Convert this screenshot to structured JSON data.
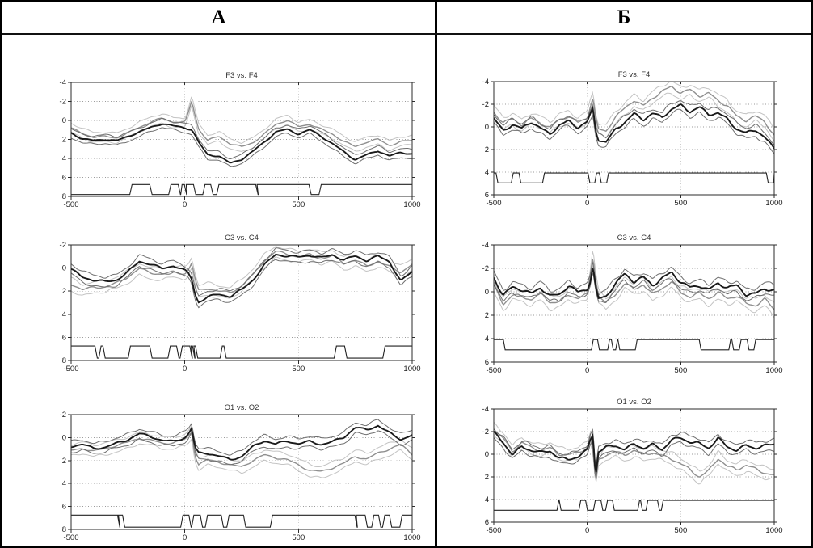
{
  "header": {
    "left": "А",
    "right": "Б"
  },
  "palette": {
    "trace_dark": "#1a1a1a",
    "trace_dark_ci": "#6e6e6e",
    "trace_gray": "#8f8f8f",
    "trace_gray_ci": "#c3c3c3",
    "marker": "#222222",
    "grid": "#9a9a9a",
    "frame": "#2b2b2b",
    "tick_label": "#1a1a1a",
    "title": "#333333"
  },
  "chart_data": [
    {
      "id": "a1",
      "panel": "А",
      "title": "F3 vs. F4",
      "type": "line",
      "xlim": [
        -500,
        1000
      ],
      "ylim_top_to_bottom": [
        -4,
        8
      ],
      "y_axis_inverted": true,
      "xticks": [
        -500,
        0,
        500,
        1000
      ],
      "yticks": [
        -4,
        -2,
        0,
        2,
        4,
        6,
        8
      ],
      "grid_x": [
        0,
        500
      ],
      "grid_y": [
        -2,
        0,
        2,
        4,
        6
      ],
      "wiggle": 0.13,
      "x": [
        -500,
        -450,
        -400,
        -350,
        -300,
        -250,
        -200,
        -150,
        -100,
        -50,
        0,
        15,
        30,
        45,
        60,
        100,
        150,
        200,
        250,
        300,
        350,
        400,
        450,
        500,
        550,
        600,
        650,
        700,
        750,
        800,
        850,
        900,
        950,
        1000
      ],
      "series": [
        {
          "name": "dark-mean",
          "values": [
            1.3,
            1.9,
            2.1,
            2.0,
            2.2,
            1.7,
            1.2,
            0.7,
            0.3,
            0.6,
            0.8,
            0.9,
            1.0,
            1.6,
            2.3,
            3.6,
            3.7,
            4.5,
            4.1,
            3.3,
            2.3,
            1.2,
            0.9,
            1.4,
            1.0,
            1.7,
            2.5,
            3.3,
            4.1,
            3.6,
            3.2,
            3.8,
            3.4,
            3.5
          ]
        },
        {
          "name": "gray-mean",
          "values": [
            0.8,
            1.4,
            1.8,
            1.7,
            1.8,
            1.3,
            0.7,
            0.2,
            -0.2,
            0.2,
            0.2,
            -0.8,
            -2.1,
            -0.6,
            0.8,
            2.1,
            1.7,
            2.5,
            2.8,
            2.3,
            1.4,
            0.4,
            0.0,
            0.7,
            0.4,
            0.9,
            1.4,
            2.2,
            2.8,
            2.3,
            2.0,
            2.6,
            2.2,
            2.1
          ]
        }
      ],
      "ci_offset_dark": 0.45,
      "ci_offset_gray": 0.5,
      "marker": {
        "baseline": 7.8,
        "active": 6.75,
        "intervals": [
          [
            -232,
            -154
          ],
          [
            -61,
            -29
          ],
          [
            -12,
            -2
          ],
          [
            6,
            38
          ],
          [
            89,
            114
          ],
          [
            150,
            312
          ],
          [
            318,
            546
          ],
          [
            600,
            1000
          ]
        ]
      }
    },
    {
      "id": "a2",
      "panel": "А",
      "title": "C3 vs. C4",
      "type": "line",
      "xlim": [
        -500,
        1000
      ],
      "ylim_top_to_bottom": [
        -2,
        8
      ],
      "y_axis_inverted": true,
      "xticks": [
        -500,
        0,
        500,
        1000
      ],
      "yticks": [
        -2,
        0,
        2,
        4,
        6,
        8
      ],
      "grid_x": [
        0,
        500
      ],
      "grid_y": [
        0,
        2,
        4,
        6
      ],
      "wiggle": 0.15,
      "x": [
        -500,
        -450,
        -400,
        -350,
        -300,
        -250,
        -200,
        -150,
        -100,
        -50,
        0,
        15,
        30,
        45,
        60,
        100,
        150,
        200,
        250,
        300,
        350,
        400,
        450,
        500,
        550,
        600,
        650,
        700,
        750,
        800,
        850,
        900,
        950,
        1000
      ],
      "series": [
        {
          "name": "dark-mean",
          "values": [
            0.1,
            0.8,
            1.1,
            1.2,
            1.0,
            0.3,
            -0.6,
            -0.3,
            0.1,
            -0.2,
            0.2,
            0.4,
            0.9,
            2.2,
            2.9,
            2.5,
            2.3,
            2.5,
            1.9,
            1.0,
            -0.3,
            -1.2,
            -1.0,
            -0.9,
            -1.1,
            -0.9,
            -1.2,
            -0.7,
            -1.0,
            -0.6,
            -1.0,
            -0.6,
            1.1,
            0.3
          ]
        },
        {
          "name": "gray-mean",
          "values": [
            1.4,
            1.9,
            1.6,
            1.6,
            1.3,
            0.8,
            0.1,
            0.4,
            0.5,
            0.3,
            0.5,
            0.2,
            -0.4,
            1.0,
            2.0,
            1.8,
            2.0,
            2.1,
            1.5,
            0.6,
            -0.6,
            -1.4,
            -1.2,
            -1.0,
            -1.2,
            -0.8,
            -1.0,
            -0.4,
            -0.7,
            -0.2,
            -0.6,
            -0.1,
            0.4,
            -0.3
          ]
        }
      ],
      "ci_offset_dark": 0.45,
      "ci_offset_gray": 0.5,
      "marker": {
        "baseline": 7.8,
        "active": 6.75,
        "intervals": [
          [
            -500,
            -395
          ],
          [
            -368,
            -360
          ],
          [
            -239,
            -154
          ],
          [
            -64,
            -36
          ],
          [
            -11,
            22
          ],
          [
            28,
            34
          ],
          [
            40,
            47
          ],
          [
            165,
            172
          ],
          [
            667,
            703
          ],
          [
            881,
            1000
          ]
        ]
      }
    },
    {
      "id": "a3",
      "panel": "А",
      "title": "O1 vs. O2",
      "type": "line",
      "xlim": [
        -500,
        1000
      ],
      "ylim_top_to_bottom": [
        -2,
        8
      ],
      "y_axis_inverted": true,
      "xticks": [
        -500,
        0,
        500,
        1000
      ],
      "yticks": [
        -2,
        0,
        2,
        4,
        6,
        8
      ],
      "grid_x": [
        0,
        500
      ],
      "grid_y": [
        0,
        2,
        4,
        6
      ],
      "wiggle": 0.14,
      "x": [
        -500,
        -450,
        -400,
        -350,
        -300,
        -250,
        -200,
        -150,
        -100,
        -50,
        0,
        15,
        30,
        45,
        60,
        100,
        150,
        200,
        250,
        300,
        350,
        400,
        450,
        500,
        550,
        600,
        650,
        700,
        750,
        800,
        850,
        900,
        950,
        1000
      ],
      "series": [
        {
          "name": "dark-mean",
          "values": [
            0.8,
            0.6,
            0.9,
            0.8,
            0.5,
            0.2,
            -0.3,
            -0.1,
            0.2,
            0.3,
            0.0,
            -0.3,
            -0.8,
            0.9,
            1.4,
            1.4,
            1.6,
            1.9,
            1.6,
            0.8,
            0.3,
            0.6,
            0.3,
            0.5,
            0.3,
            0.6,
            0.4,
            0.0,
            -0.9,
            -0.7,
            -1.1,
            -0.4,
            0.2,
            -0.2
          ]
        },
        {
          "name": "gray-mean",
          "values": [
            1.1,
            0.9,
            1.2,
            1.0,
            0.7,
            0.4,
            0.0,
            0.2,
            0.5,
            0.5,
            0.2,
            -0.1,
            -0.5,
            1.5,
            2.3,
            1.9,
            2.1,
            2.4,
            2.6,
            2.0,
            1.5,
            1.7,
            1.9,
            2.4,
            2.9,
            3.0,
            2.6,
            2.2,
            1.6,
            1.9,
            1.4,
            1.0,
            0.6,
            1.4
          ]
        }
      ],
      "ci_offset_dark": 0.45,
      "ci_offset_gray": 0.5,
      "marker": {
        "baseline": 7.8,
        "active": 6.75,
        "intervals": [
          [
            -500,
            -296
          ],
          [
            -292,
            -274
          ],
          [
            -8,
            18
          ],
          [
            40,
            68
          ],
          [
            100,
            160
          ],
          [
            195,
            258
          ],
          [
            386,
            748
          ],
          [
            754,
            793
          ],
          [
            832,
            852
          ],
          [
            880,
            900
          ],
          [
            956,
            1000
          ]
        ]
      }
    },
    {
      "id": "b1",
      "panel": "Б",
      "title": "F3 vs. F4",
      "type": "line",
      "xlim": [
        -500,
        1000
      ],
      "ylim_top_to_bottom": [
        -4,
        6
      ],
      "y_axis_inverted": true,
      "xticks": [
        -500,
        0,
        500,
        1000
      ],
      "yticks": [
        -4,
        -2,
        0,
        2,
        4,
        6
      ],
      "grid_x": [
        0,
        500
      ],
      "grid_y": [
        -2,
        0,
        2,
        4
      ],
      "wiggle": 0.18,
      "x": [
        -500,
        -450,
        -400,
        -350,
        -300,
        -250,
        -200,
        -150,
        -100,
        -50,
        0,
        15,
        30,
        45,
        60,
        100,
        150,
        200,
        250,
        300,
        350,
        400,
        450,
        500,
        550,
        600,
        650,
        700,
        750,
        800,
        850,
        900,
        950,
        1000
      ],
      "series": [
        {
          "name": "dark-mean",
          "values": [
            -0.8,
            0.3,
            -0.2,
            0.2,
            -0.4,
            0.1,
            0.6,
            -0.2,
            -0.5,
            0.1,
            -0.4,
            -1.0,
            -1.6,
            0.3,
            1.1,
            1.3,
            0.2,
            -0.4,
            -1.1,
            -0.6,
            -1.2,
            -0.9,
            -1.6,
            -1.9,
            -1.3,
            -1.7,
            -1.1,
            -1.3,
            -0.7,
            0.2,
            0.6,
            0.3,
            0.9,
            1.9
          ]
        },
        {
          "name": "gray-mean",
          "values": [
            -1.3,
            -0.3,
            -0.7,
            -0.2,
            -0.8,
            -0.4,
            0.1,
            -0.6,
            -0.9,
            -0.4,
            -0.9,
            -1.8,
            -2.6,
            -0.8,
            0.2,
            0.4,
            -0.8,
            -1.6,
            -2.4,
            -1.9,
            -2.6,
            -3.1,
            -3.5,
            -3.0,
            -3.3,
            -2.8,
            -3.0,
            -2.3,
            -1.8,
            -0.9,
            -0.6,
            -1.0,
            -0.5,
            0.8
          ]
        }
      ],
      "ci_offset_dark": 0.45,
      "ci_offset_gray": 0.5,
      "marker": {
        "baseline": 4.08,
        "active": 4.95,
        "intervals": [
          [
            -478,
            -406
          ],
          [
            -355,
            -239
          ],
          [
            14,
            40
          ],
          [
            75,
            104
          ],
          [
            968,
            997
          ]
        ]
      }
    },
    {
      "id": "b2",
      "panel": "Б",
      "title": "C3 vs. C4",
      "type": "line",
      "xlim": [
        -500,
        1000
      ],
      "ylim_top_to_bottom": [
        -4,
        6
      ],
      "y_axis_inverted": true,
      "xticks": [
        -500,
        0,
        500,
        1000
      ],
      "yticks": [
        -4,
        -2,
        0,
        2,
        4,
        6
      ],
      "grid_x": [
        0,
        500
      ],
      "grid_y": [
        -2,
        0,
        2,
        4
      ],
      "wiggle": 0.2,
      "x": [
        -500,
        -450,
        -400,
        -350,
        -300,
        -250,
        -200,
        -150,
        -100,
        -50,
        0,
        15,
        30,
        45,
        60,
        100,
        150,
        200,
        250,
        300,
        350,
        400,
        450,
        500,
        550,
        600,
        650,
        700,
        750,
        800,
        850,
        900,
        950,
        1000
      ],
      "series": [
        {
          "name": "dark-mean",
          "values": [
            -1.2,
            0.4,
            -0.4,
            -0.2,
            0.1,
            -0.4,
            0.4,
            0.3,
            -0.5,
            0.0,
            -0.3,
            -0.9,
            -2.2,
            -0.4,
            0.6,
            0.4,
            -0.6,
            -1.5,
            -0.9,
            -1.3,
            -0.6,
            -1.1,
            -1.6,
            -0.8,
            -0.4,
            -0.6,
            -0.2,
            -0.7,
            -0.3,
            -0.5,
            0.2,
            0.1,
            -0.3,
            -0.1
          ]
        },
        {
          "name": "gray-mean",
          "values": [
            -0.5,
            1.0,
            0.2,
            0.4,
            0.7,
            0.2,
            0.9,
            0.8,
            0.2,
            0.5,
            0.3,
            -1.2,
            -3.0,
            -1.0,
            0.3,
            1.0,
            0.2,
            -0.8,
            -0.2,
            -0.6,
            0.3,
            -0.3,
            -0.9,
            0.0,
            0.4,
            0.2,
            0.6,
            0.1,
            0.5,
            0.3,
            1.0,
            1.2,
            0.7,
            1.5
          ]
        }
      ],
      "ci_offset_dark": 0.45,
      "ci_offset_gray": 0.5,
      "marker": {
        "baseline": 4.08,
        "active": 4.95,
        "intervals": [
          [
            -439,
            22
          ],
          [
            65,
            109
          ],
          [
            139,
            152
          ],
          [
            174,
            257
          ],
          [
            609,
            757
          ],
          [
            783,
            813
          ],
          [
            865,
            891
          ]
        ]
      }
    },
    {
      "id": "b3",
      "panel": "Б",
      "title": "O1 vs. O2",
      "type": "line",
      "xlim": [
        -500,
        1000
      ],
      "ylim_top_to_bottom": [
        -4,
        6
      ],
      "y_axis_inverted": true,
      "xticks": [
        -500,
        0,
        500,
        1000
      ],
      "yticks": [
        -4,
        -2,
        0,
        2,
        4,
        6
      ],
      "grid_x": [
        0,
        500
      ],
      "grid_y": [
        -2,
        0,
        2,
        4
      ],
      "wiggle": 0.18,
      "x": [
        -500,
        -450,
        -400,
        -350,
        -300,
        -250,
        -200,
        -150,
        -100,
        -50,
        0,
        15,
        30,
        45,
        60,
        100,
        150,
        200,
        250,
        300,
        350,
        400,
        450,
        500,
        550,
        600,
        650,
        700,
        750,
        800,
        850,
        900,
        950,
        1000
      ],
      "series": [
        {
          "name": "dark-mean",
          "values": [
            -1.9,
            -1.1,
            0.0,
            -0.7,
            -0.3,
            -0.1,
            -0.3,
            0.3,
            0.4,
            0.2,
            -0.3,
            -1.2,
            -1.7,
            2.0,
            -0.2,
            -0.6,
            -0.8,
            -0.5,
            -0.9,
            -0.5,
            -0.8,
            -0.4,
            -1.3,
            -1.5,
            -1.1,
            -0.9,
            -0.5,
            -1.4,
            -0.7,
            -0.4,
            -0.8,
            -0.5,
            -0.7,
            -0.9
          ]
        },
        {
          "name": "gray-mean",
          "values": [
            -2.2,
            -1.4,
            -0.2,
            -1.0,
            -0.6,
            -0.4,
            -0.6,
            0.0,
            0.1,
            -0.1,
            -0.6,
            -1.5,
            -0.5,
            2.3,
            0.5,
            0.0,
            -0.2,
            0.1,
            -0.3,
            0.0,
            -0.2,
            0.1,
            0.4,
            0.9,
            1.4,
            2.0,
            1.4,
            0.3,
            1.1,
            1.4,
            1.0,
            1.3,
            1.6,
            1.8
          ]
        }
      ],
      "ci_offset_dark": 0.45,
      "ci_offset_gray": 0.5,
      "marker": {
        "baseline": 4.08,
        "active": 4.95,
        "intervals": [
          [
            -500,
            -162
          ],
          [
            -140,
            -45
          ],
          [
            1,
            33
          ],
          [
            83,
            98
          ],
          [
            145,
            270
          ],
          [
            295,
            314
          ],
          [
            386,
            396
          ]
        ]
      }
    }
  ]
}
